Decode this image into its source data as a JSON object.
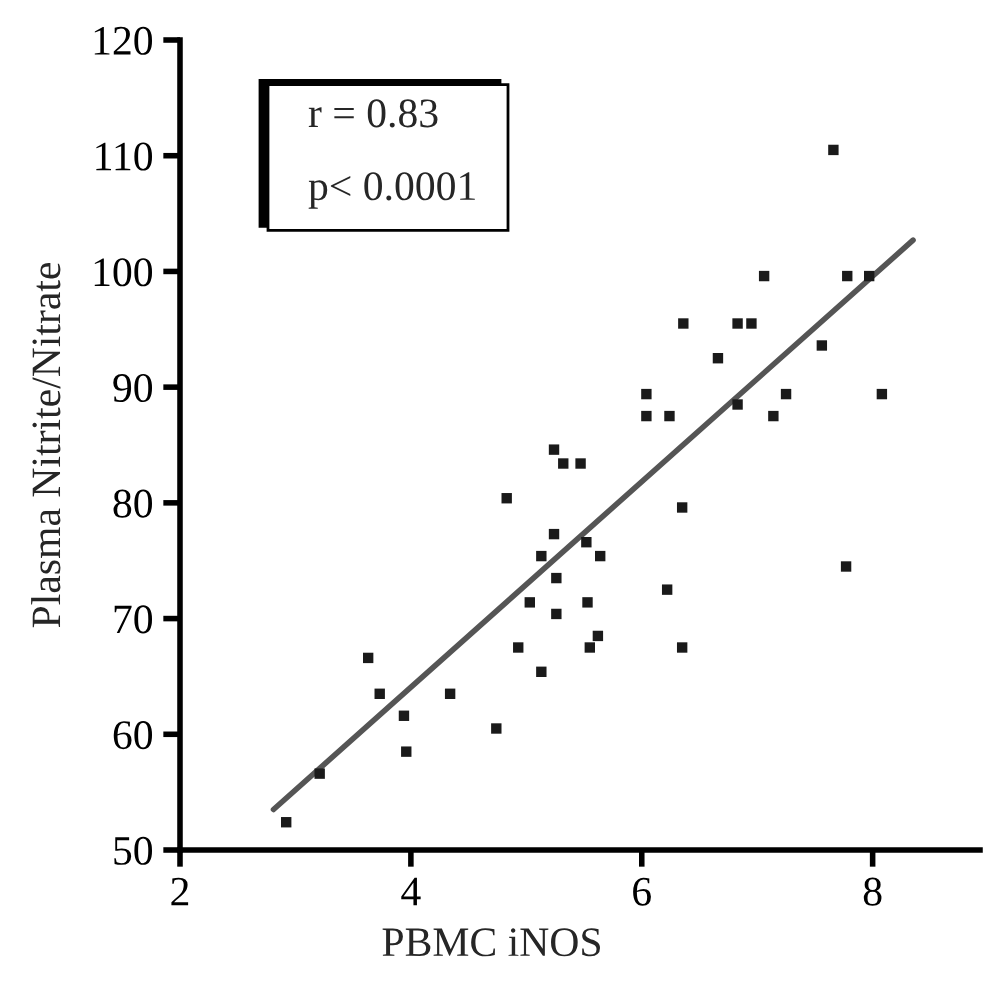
{
  "chart_data": {
    "type": "scatter",
    "xlabel": "PBMC iNOS",
    "ylabel": "Plasma Nitrite/Nitrate",
    "annotations": [
      "r = 0.83",
      "p< 0.0001"
    ],
    "xlim": [
      2,
      8.93
    ],
    "ylim": [
      50,
      120
    ],
    "xticks": [
      2,
      4,
      6,
      8
    ],
    "yticks": [
      50,
      60,
      70,
      80,
      90,
      100,
      110,
      120
    ],
    "grid": false,
    "legend": false,
    "marker": "square",
    "series": [
      {
        "color": "#1a1a1a",
        "x": [
          2.92,
          3.21,
          3.63,
          3.73,
          3.94,
          3.96,
          4.34,
          4.74,
          4.83,
          4.93,
          5.13,
          5.13,
          5.03,
          5.24,
          5.26,
          5.26,
          5.24,
          5.32,
          5.47,
          5.52,
          5.64,
          5.53,
          5.62,
          5.55,
          6.22,
          6.35,
          6.35,
          6.04,
          6.04,
          6.24,
          6.36,
          6.66,
          6.83,
          6.95,
          6.83,
          7.06,
          7.14,
          7.25,
          7.56,
          7.66,
          7.78,
          7.97,
          8.08,
          7.77
        ],
        "values": [
          52.4,
          56.6,
          66.6,
          63.5,
          61.6,
          58.5,
          63.5,
          60.5,
          80.4,
          67.5,
          65.4,
          75.4,
          71.4,
          77.3,
          73.5,
          70.4,
          84.6,
          83.4,
          83.4,
          76.6,
          75.4,
          71.4,
          68.5,
          67.5,
          72.5,
          79.6,
          67.5,
          89.4,
          87.5,
          87.5,
          95.5,
          92.5,
          95.5,
          95.5,
          88.5,
          99.6,
          87.5,
          89.4,
          93.6,
          110.5,
          99.6,
          99.6,
          89.4,
          74.5
        ]
      },
      {
        "type": "line",
        "marker": "none",
        "color": "#555555",
        "x": [
          2.81,
          8.35
        ],
        "values": [
          53.5,
          102.7
        ]
      }
    ]
  }
}
